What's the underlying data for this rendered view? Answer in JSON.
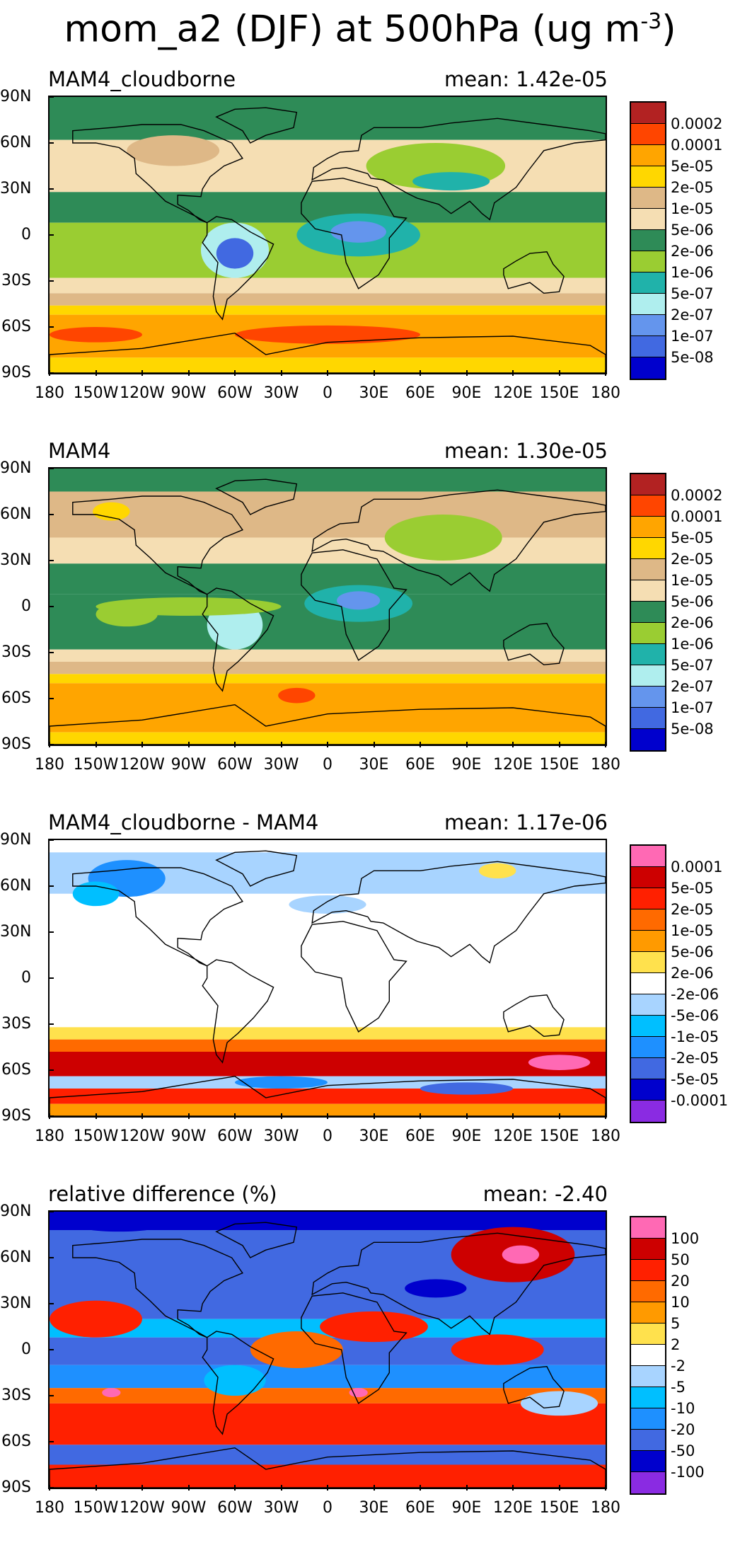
{
  "figure": {
    "title": "mom_a2 (DJF) at 500hPa (ug m",
    "title_sup": "-3",
    "title_end": ")"
  },
  "chart_data": [
    {
      "type": "heatmap",
      "title": "MAM4_cloudborne",
      "mean_text": "mean:  1.42e-05",
      "xlabels": [
        "180",
        "150W",
        "120W",
        "90W",
        "60W",
        "30W",
        "0",
        "30E",
        "60E",
        "90E",
        "120E",
        "150E",
        "180"
      ],
      "ylabels": [
        "90N",
        "60N",
        "30N",
        "0",
        "30S",
        "60S",
        "90S"
      ],
      "xlim": [
        -180,
        180
      ],
      "ylim": [
        -90,
        90
      ],
      "colorbar": {
        "labels": [
          "0.0002",
          "0.0001",
          "5e-05",
          "2e-05",
          "1e-05",
          "5e-06",
          "2e-06",
          "1e-06",
          "5e-07",
          "2e-07",
          "1e-07",
          "5e-08"
        ],
        "colors": [
          "#b22222",
          "#ff4500",
          "#ffa500",
          "#ffd700",
          "#deb887",
          "#f5deb3",
          "#2e8b57",
          "#9acd32",
          "#20b2aa",
          "#afeeee",
          "#6495ed",
          "#4169e1",
          "#0000cd"
        ]
      },
      "bands": [
        {
          "lat_from": 90,
          "lat_to": 62,
          "level": 6
        },
        {
          "lat_from": 62,
          "lat_to": 42,
          "level": 5
        },
        {
          "lat_from": 42,
          "lat_to": 28,
          "level": 5
        },
        {
          "lat_from": 28,
          "lat_to": 8,
          "level": 6
        },
        {
          "lat_from": 8,
          "lat_to": -28,
          "level": 7
        },
        {
          "lat_from": -28,
          "lat_to": -38,
          "level": 5
        },
        {
          "lat_from": -38,
          "lat_to": -46,
          "level": 4
        },
        {
          "lat_from": -46,
          "lat_to": -52,
          "level": 3
        },
        {
          "lat_from": -52,
          "lat_to": -80,
          "level": 2
        },
        {
          "lat_from": -80,
          "lat_to": -90,
          "level": 3
        }
      ],
      "blobs": [
        {
          "lon": -60,
          "lat": -10,
          "rlon": 22,
          "rlat": 18,
          "level": 9
        },
        {
          "lon": -60,
          "lat": -12,
          "rlon": 12,
          "rlat": 10,
          "level": 11
        },
        {
          "lon": 20,
          "lat": 0,
          "rlon": 40,
          "rlat": 14,
          "level": 8
        },
        {
          "lon": 20,
          "lat": 2,
          "rlon": 18,
          "rlat": 7,
          "level": 10
        },
        {
          "lon": 70,
          "lat": 45,
          "rlon": 45,
          "rlat": 15,
          "level": 7
        },
        {
          "lon": 80,
          "lat": 35,
          "rlon": 25,
          "rlat": 6,
          "level": 8
        },
        {
          "lon": -100,
          "lat": 55,
          "rlon": 30,
          "rlat": 10,
          "level": 4
        },
        {
          "lon": 0,
          "lat": -65,
          "rlon": 60,
          "rlat": 6,
          "level": 1
        },
        {
          "lon": -150,
          "lat": -65,
          "rlon": 30,
          "rlat": 5,
          "level": 1
        }
      ]
    },
    {
      "type": "heatmap",
      "title": "MAM4",
      "mean_text": "mean:  1.30e-05",
      "xlabels": [
        "180",
        "150W",
        "120W",
        "90W",
        "60W",
        "30W",
        "0",
        "30E",
        "60E",
        "90E",
        "120E",
        "150E",
        "180"
      ],
      "ylabels": [
        "90N",
        "60N",
        "30N",
        "0",
        "30S",
        "60S",
        "90S"
      ],
      "xlim": [
        -180,
        180
      ],
      "ylim": [
        -90,
        90
      ],
      "colorbar": {
        "labels": [
          "0.0002",
          "0.0001",
          "5e-05",
          "2e-05",
          "1e-05",
          "5e-06",
          "2e-06",
          "1e-06",
          "5e-07",
          "2e-07",
          "1e-07",
          "5e-08"
        ],
        "colors": [
          "#b22222",
          "#ff4500",
          "#ffa500",
          "#ffd700",
          "#deb887",
          "#f5deb3",
          "#2e8b57",
          "#9acd32",
          "#20b2aa",
          "#afeeee",
          "#6495ed",
          "#4169e1",
          "#0000cd"
        ]
      },
      "bands": [
        {
          "lat_from": 90,
          "lat_to": 75,
          "level": 6
        },
        {
          "lat_from": 75,
          "lat_to": 45,
          "level": 4
        },
        {
          "lat_from": 45,
          "lat_to": 28,
          "level": 5
        },
        {
          "lat_from": 28,
          "lat_to": 8,
          "level": 6
        },
        {
          "lat_from": 8,
          "lat_to": -28,
          "level": 6
        },
        {
          "lat_from": -28,
          "lat_to": -36,
          "level": 5
        },
        {
          "lat_from": -36,
          "lat_to": -44,
          "level": 4
        },
        {
          "lat_from": -44,
          "lat_to": -50,
          "level": 3
        },
        {
          "lat_from": -50,
          "lat_to": -82,
          "level": 2
        },
        {
          "lat_from": -82,
          "lat_to": -90,
          "level": 3
        }
      ],
      "blobs": [
        {
          "lon": -140,
          "lat": 62,
          "rlon": 12,
          "rlat": 6,
          "level": 3
        },
        {
          "lon": -60,
          "lat": -12,
          "rlon": 18,
          "rlat": 16,
          "level": 9
        },
        {
          "lon": 20,
          "lat": 2,
          "rlon": 35,
          "rlat": 12,
          "level": 8
        },
        {
          "lon": 20,
          "lat": 4,
          "rlon": 14,
          "rlat": 6,
          "level": 10
        },
        {
          "lon": 75,
          "lat": 45,
          "rlon": 38,
          "rlat": 15,
          "level": 7
        },
        {
          "lon": -130,
          "lat": -5,
          "rlon": 20,
          "rlat": 8,
          "level": 7
        },
        {
          "lon": -90,
          "lat": 0,
          "rlon": 60,
          "rlat": 6,
          "level": 7
        },
        {
          "lon": -20,
          "lat": -58,
          "rlon": 12,
          "rlat": 5,
          "level": 1
        }
      ]
    },
    {
      "type": "heatmap",
      "title": "MAM4_cloudborne - MAM4",
      "mean_text": "mean:  1.17e-06",
      "xlabels": [
        "180",
        "150W",
        "120W",
        "90W",
        "60W",
        "30W",
        "0",
        "30E",
        "60E",
        "90E",
        "120E",
        "150E",
        "180"
      ],
      "ylabels": [
        "90N",
        "60N",
        "30N",
        "0",
        "30S",
        "60S",
        "90S"
      ],
      "xlim": [
        -180,
        180
      ],
      "ylim": [
        -90,
        90
      ],
      "colorbar": {
        "labels": [
          "0.0001",
          "5e-05",
          "2e-05",
          "1e-05",
          "5e-06",
          "2e-06",
          "-2e-06",
          "-5e-06",
          "-1e-05",
          "-2e-05",
          "-5e-05",
          "-0.0001"
        ],
        "colors": [
          "#ff69b4",
          "#cd0000",
          "#ff2000",
          "#ff6a00",
          "#ff9a00",
          "#ffe14d",
          "#ffffff",
          "#a8d4ff",
          "#00bfff",
          "#1e90ff",
          "#4169e1",
          "#0000cd",
          "#8a2be2"
        ]
      },
      "bands": [
        {
          "lat_from": 90,
          "lat_to": 82,
          "level": 6
        },
        {
          "lat_from": 82,
          "lat_to": 55,
          "level": 7
        },
        {
          "lat_from": 55,
          "lat_to": 40,
          "level": 6
        },
        {
          "lat_from": 40,
          "lat_to": -32,
          "level": 6
        },
        {
          "lat_from": -32,
          "lat_to": -40,
          "level": 5
        },
        {
          "lat_from": -40,
          "lat_to": -48,
          "level": 3
        },
        {
          "lat_from": -48,
          "lat_to": -64,
          "level": 1
        },
        {
          "lat_from": -64,
          "lat_to": -72,
          "level": 7
        },
        {
          "lat_from": -72,
          "lat_to": -82,
          "level": 2
        },
        {
          "lat_from": -82,
          "lat_to": -90,
          "level": 4
        }
      ],
      "blobs": [
        {
          "lon": -130,
          "lat": 65,
          "rlon": 25,
          "rlat": 12,
          "level": 9
        },
        {
          "lon": -150,
          "lat": 55,
          "rlon": 15,
          "rlat": 8,
          "level": 8
        },
        {
          "lon": 0,
          "lat": 48,
          "rlon": 25,
          "rlat": 6,
          "level": 7
        },
        {
          "lon": 110,
          "lat": 70,
          "rlon": 12,
          "rlat": 5,
          "level": 5
        },
        {
          "lon": -30,
          "lat": -68,
          "rlon": 30,
          "rlat": 4,
          "level": 9
        },
        {
          "lon": 90,
          "lat": -72,
          "rlon": 30,
          "rlat": 4,
          "level": 10
        },
        {
          "lon": 150,
          "lat": -55,
          "rlon": 20,
          "rlat": 5,
          "level": 0
        }
      ]
    },
    {
      "type": "heatmap",
      "title": "relative difference (%)",
      "mean_text": "mean: -2.40",
      "xlabels": [
        "180",
        "150W",
        "120W",
        "90W",
        "60W",
        "30W",
        "0",
        "30E",
        "60E",
        "90E",
        "120E",
        "150E",
        "180"
      ],
      "ylabels": [
        "90N",
        "60N",
        "30N",
        "0",
        "30S",
        "60S",
        "90S"
      ],
      "xlim": [
        -180,
        180
      ],
      "ylim": [
        -90,
        90
      ],
      "colorbar": {
        "labels": [
          "100",
          "50",
          "20",
          "10",
          "5",
          "2",
          "-2",
          "-5",
          "-10",
          "-20",
          "-50",
          "-100"
        ],
        "colors": [
          "#ff69b4",
          "#cd0000",
          "#ff2000",
          "#ff6a00",
          "#ff9a00",
          "#ffe14d",
          "#ffffff",
          "#a8d4ff",
          "#00bfff",
          "#1e90ff",
          "#4169e1",
          "#0000cd",
          "#8a2be2"
        ]
      },
      "bands": [
        {
          "lat_from": 90,
          "lat_to": 78,
          "level": 11
        },
        {
          "lat_from": 78,
          "lat_to": 20,
          "level": 10
        },
        {
          "lat_from": 20,
          "lat_to": 8,
          "level": 8
        },
        {
          "lat_from": 8,
          "lat_to": -10,
          "level": 10
        },
        {
          "lat_from": -10,
          "lat_to": -25,
          "level": 9
        },
        {
          "lat_from": -25,
          "lat_to": -35,
          "level": 3
        },
        {
          "lat_from": -35,
          "lat_to": -62,
          "level": 2
        },
        {
          "lat_from": -62,
          "lat_to": -75,
          "level": 10
        },
        {
          "lat_from": -75,
          "lat_to": -90,
          "level": 2
        }
      ],
      "blobs": [
        {
          "lon": 120,
          "lat": 62,
          "rlon": 40,
          "rlat": 18,
          "level": 1
        },
        {
          "lon": 125,
          "lat": 62,
          "rlon": 12,
          "rlat": 6,
          "level": 0
        },
        {
          "lon": -150,
          "lat": 20,
          "rlon": 30,
          "rlat": 12,
          "level": 2
        },
        {
          "lon": 30,
          "lat": 15,
          "rlon": 35,
          "rlat": 10,
          "level": 2
        },
        {
          "lon": -20,
          "lat": 0,
          "rlon": 30,
          "rlat": 12,
          "level": 3
        },
        {
          "lon": 110,
          "lat": 0,
          "rlon": 30,
          "rlat": 10,
          "level": 2
        },
        {
          "lon": 70,
          "lat": 40,
          "rlon": 20,
          "rlat": 6,
          "level": 11
        },
        {
          "lon": -135,
          "lat": 82,
          "rlon": 30,
          "rlat": 5,
          "level": 11
        },
        {
          "lon": -60,
          "lat": -20,
          "rlon": 20,
          "rlat": 10,
          "level": 8
        },
        {
          "lon": 150,
          "lat": -35,
          "rlon": 25,
          "rlat": 8,
          "level": 7
        },
        {
          "lon": -140,
          "lat": -28,
          "rlon": 6,
          "rlat": 3,
          "level": 0
        },
        {
          "lon": 20,
          "lat": -28,
          "rlon": 6,
          "rlat": 3,
          "level": 0
        }
      ]
    }
  ]
}
